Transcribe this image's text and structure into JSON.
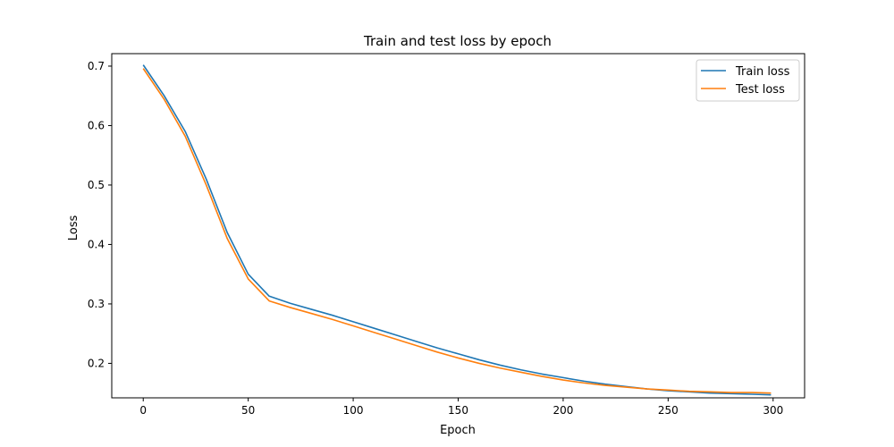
{
  "chart_data": {
    "type": "line",
    "title": "Train and test loss by epoch",
    "xlabel": "Epoch",
    "ylabel": "Loss",
    "xlim": [
      -15,
      315
    ],
    "ylim": [
      0.142,
      0.721
    ],
    "xticks": [
      0,
      50,
      100,
      150,
      200,
      250,
      300
    ],
    "yticks": [
      0.2,
      0.3,
      0.4,
      0.5,
      0.6,
      0.7
    ],
    "grid": false,
    "legend_position": "upper right",
    "x": [
      0,
      10,
      20,
      30,
      40,
      50,
      60,
      70,
      80,
      90,
      100,
      110,
      120,
      130,
      140,
      150,
      160,
      170,
      180,
      190,
      200,
      210,
      220,
      230,
      240,
      250,
      260,
      270,
      280,
      290,
      299
    ],
    "series": [
      {
        "name": "Train loss",
        "color": "#1f77b4",
        "values": [
          0.702,
          0.65,
          0.59,
          0.51,
          0.42,
          0.35,
          0.313,
          0.301,
          0.291,
          0.281,
          0.27,
          0.259,
          0.248,
          0.237,
          0.226,
          0.216,
          0.206,
          0.197,
          0.189,
          0.182,
          0.176,
          0.17,
          0.165,
          0.161,
          0.157,
          0.154,
          0.152,
          0.15,
          0.149,
          0.148,
          0.147
        ]
      },
      {
        "name": "Test loss",
        "color": "#ff7f0e",
        "values": [
          0.696,
          0.644,
          0.582,
          0.5,
          0.41,
          0.342,
          0.305,
          0.294,
          0.284,
          0.274,
          0.263,
          0.252,
          0.241,
          0.23,
          0.219,
          0.209,
          0.2,
          0.192,
          0.185,
          0.178,
          0.172,
          0.167,
          0.163,
          0.16,
          0.157,
          0.155,
          0.153,
          0.152,
          0.151,
          0.151,
          0.15
        ]
      }
    ]
  }
}
